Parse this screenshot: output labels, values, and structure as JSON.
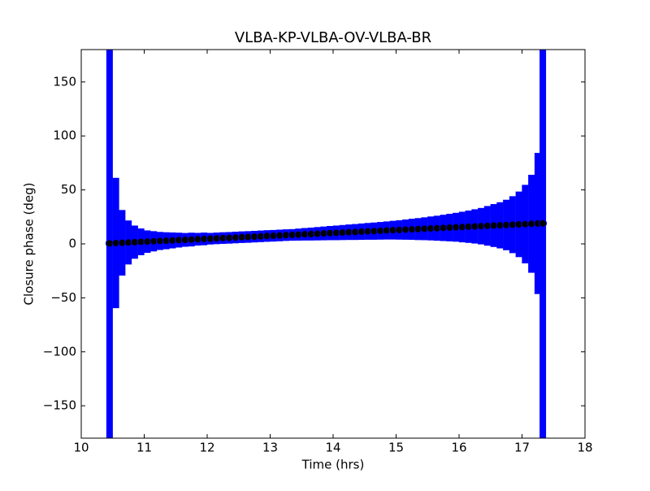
{
  "chart_data": {
    "type": "errorbar",
    "title": "VLBA-KP-VLBA-OV-VLBA-BR",
    "x_label": "Time (hrs)",
    "y_label": "Closure phase (deg)",
    "x": [
      10.45,
      10.55,
      10.65,
      10.75,
      10.85,
      10.95,
      11.05,
      11.15,
      11.25,
      11.35,
      11.45,
      11.55,
      11.65,
      11.75,
      11.85,
      11.95,
      12.05,
      12.15,
      12.25,
      12.35,
      12.45,
      12.55,
      12.65,
      12.75,
      12.85,
      12.95,
      13.05,
      13.15,
      13.25,
      13.35,
      13.45,
      13.55,
      13.65,
      13.75,
      13.85,
      13.95,
      14.05,
      14.15,
      14.25,
      14.35,
      14.45,
      14.55,
      14.65,
      14.75,
      14.85,
      14.95,
      15.05,
      15.15,
      15.25,
      15.35,
      15.45,
      15.55,
      15.65,
      15.75,
      15.85,
      15.95,
      16.05,
      16.15,
      16.25,
      16.35,
      16.45,
      16.55,
      16.65,
      16.75,
      16.85,
      16.95,
      17.05,
      17.15,
      17.25,
      17.33
    ],
    "values": [
      0.5,
      0.8,
      1.0,
      1.3,
      1.6,
      1.9,
      2.1,
      2.4,
      2.7,
      2.9,
      3.2,
      3.5,
      3.7,
      4.0,
      4.3,
      4.6,
      4.8,
      5.1,
      5.4,
      5.6,
      5.9,
      6.2,
      6.4,
      6.7,
      7.0,
      7.3,
      7.5,
      7.8,
      8.1,
      8.3,
      8.6,
      8.9,
      9.1,
      9.4,
      9.7,
      10.0,
      10.2,
      10.5,
      10.8,
      11.0,
      11.3,
      11.6,
      11.8,
      12.1,
      12.4,
      12.7,
      12.9,
      13.2,
      13.5,
      13.7,
      14.0,
      14.3,
      14.5,
      14.8,
      15.1,
      15.4,
      15.6,
      15.9,
      16.2,
      16.4,
      16.7,
      17.0,
      17.2,
      17.5,
      17.8,
      18.1,
      18.3,
      18.6,
      18.9,
      19.0
    ],
    "errors": [
      250,
      60,
      30,
      20,
      15,
      12,
      10,
      9,
      8,
      7.5,
      7,
      6.5,
      6,
      6,
      5.5,
      5.5,
      5,
      5,
      5,
      5,
      5,
      5,
      5,
      5,
      5,
      5,
      5,
      5,
      5,
      5,
      5.2,
      5.4,
      5.6,
      5.8,
      6,
      6.2,
      6.4,
      6.6,
      6.8,
      7,
      7.2,
      7.4,
      7.6,
      7.8,
      8,
      8.3,
      8.6,
      9,
      9.4,
      9.8,
      10.2,
      10.7,
      11.2,
      11.8,
      12.4,
      13,
      13.8,
      14.6,
      15.5,
      16.5,
      18,
      19.5,
      21,
      23,
      26,
      30,
      36,
      45,
      65,
      250
    ],
    "color": "#0000ff",
    "marker_color": "#000000",
    "xlim": [
      10,
      18
    ],
    "ylim": [
      -180,
      180
    ],
    "xticks": [
      10,
      11,
      12,
      13,
      14,
      15,
      16,
      17,
      18
    ],
    "yticks": [
      {
        "value": -150,
        "label": "−150"
      },
      {
        "value": -100,
        "label": "−100"
      },
      {
        "value": -50,
        "label": "−50"
      },
      0,
      50,
      100,
      150
    ]
  }
}
